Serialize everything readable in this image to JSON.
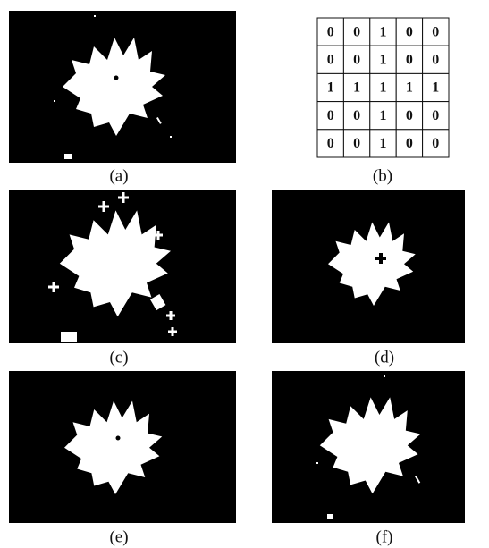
{
  "figure": {
    "panels": [
      {
        "label": "(a)"
      },
      {
        "label": "(b)"
      },
      {
        "label": "(c)"
      },
      {
        "label": "(d)"
      },
      {
        "label": "(e)"
      },
      {
        "label": "(f)"
      }
    ],
    "table": {
      "rows": [
        [
          0,
          0,
          1,
          0,
          0
        ],
        [
          0,
          0,
          1,
          0,
          0
        ],
        [
          1,
          1,
          1,
          1,
          1
        ],
        [
          0,
          0,
          1,
          0,
          0
        ],
        [
          0,
          0,
          1,
          0,
          0
        ]
      ]
    }
  }
}
